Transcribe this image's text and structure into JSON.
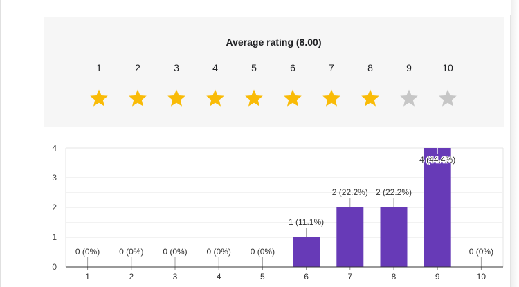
{
  "rating": {
    "title": "Average rating (8.00)",
    "scale": [
      {
        "label": "1",
        "filled": true
      },
      {
        "label": "2",
        "filled": true
      },
      {
        "label": "3",
        "filled": true
      },
      {
        "label": "4",
        "filled": true
      },
      {
        "label": "5",
        "filled": true
      },
      {
        "label": "6",
        "filled": true
      },
      {
        "label": "7",
        "filled": true
      },
      {
        "label": "8",
        "filled": true
      },
      {
        "label": "9",
        "filled": false
      },
      {
        "label": "10",
        "filled": false
      }
    ],
    "star_color": "#f9bb07",
    "empty_star_color": "#c6c6c6"
  },
  "chart_data": {
    "type": "bar",
    "categories": [
      "1",
      "2",
      "3",
      "4",
      "5",
      "6",
      "7",
      "8",
      "9",
      "10"
    ],
    "values": [
      0,
      0,
      0,
      0,
      0,
      1,
      2,
      2,
      4,
      0
    ],
    "data_labels": [
      "0 (0%)",
      "0 (0%)",
      "0 (0%)",
      "0 (0%)",
      "0 (0%)",
      "1 (11.1%)",
      "2 (22.2%)",
      "2 (22.2%)",
      "4 (44.4%)",
      "0 (0%)"
    ],
    "y_ticks": [
      "0",
      "1",
      "2",
      "3",
      "4"
    ],
    "ylim": [
      0,
      4
    ],
    "title": "",
    "xlabel": "",
    "ylabel": "",
    "grid": true,
    "bar_color": "#673ab7"
  }
}
